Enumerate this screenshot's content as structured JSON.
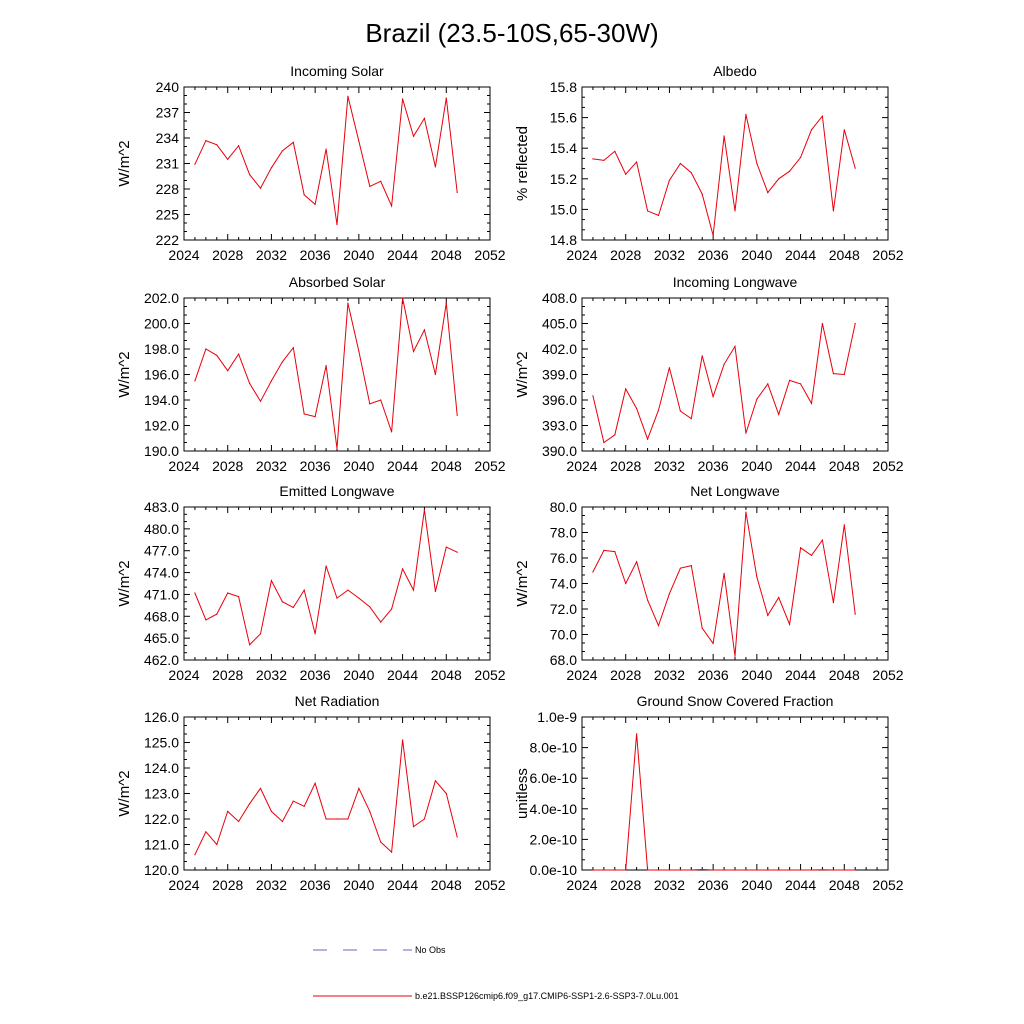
{
  "figure": {
    "title": "Brazil (23.5-10S,65-30W)"
  },
  "legend": {
    "entries": [
      {
        "label": "No Obs",
        "color": "#6666cc",
        "style": "dashed"
      },
      {
        "label": "b.e21.BSSP126cmip6.f09_g17.CMIP6-SSP1-2.6-SSP3-7.0Lu.001",
        "color": "#e8000b",
        "style": "solid"
      }
    ]
  },
  "chart_data": [
    {
      "type": "line",
      "title": "Incoming Solar",
      "ylabel": "W/m^2",
      "xlim": [
        2024,
        2052
      ],
      "xticks": [
        2024,
        2028,
        2032,
        2036,
        2040,
        2044,
        2048,
        2052
      ],
      "ylim": [
        222,
        240
      ],
      "yticks": [
        222,
        225,
        228,
        231,
        234,
        237,
        240
      ],
      "ytick_labels": [
        "222",
        "225",
        "228",
        "231",
        "234",
        "237",
        "240"
      ],
      "series": [
        {
          "color": "#e8000b",
          "x": [
            2025,
            2026,
            2027,
            2028,
            2029,
            2030,
            2031,
            2032,
            2033,
            2034,
            2035,
            2036,
            2037,
            2038,
            2039,
            2040,
            2041,
            2042,
            2043,
            2044,
            2045,
            2046,
            2047,
            2048,
            2049
          ],
          "values": [
            230.9,
            233.7,
            233.2,
            231.5,
            233.1,
            229.7,
            228.1,
            230.5,
            232.5,
            233.5,
            227.3,
            226.2,
            232.7,
            223.8,
            238.9,
            233.6,
            228.3,
            228.9,
            226.0,
            238.6,
            234.2,
            236.3,
            230.6,
            238.7,
            227.6
          ]
        }
      ]
    },
    {
      "type": "line",
      "title": "Albedo",
      "ylabel": "% reflected",
      "xlim": [
        2024,
        2052
      ],
      "xticks": [
        2024,
        2028,
        2032,
        2036,
        2040,
        2044,
        2048,
        2052
      ],
      "ylim": [
        14.8,
        15.8
      ],
      "yticks": [
        14.8,
        15.0,
        15.2,
        15.4,
        15.6,
        15.8
      ],
      "ytick_labels": [
        "14.8",
        "15.0",
        "15.2",
        "15.4",
        "15.6",
        "15.8"
      ],
      "series": [
        {
          "color": "#e8000b",
          "x": [
            2025,
            2026,
            2027,
            2028,
            2029,
            2030,
            2031,
            2032,
            2033,
            2034,
            2035,
            2036,
            2037,
            2038,
            2039,
            2040,
            2041,
            2042,
            2043,
            2044,
            2045,
            2046,
            2047,
            2048,
            2049
          ],
          "values": [
            15.33,
            15.32,
            15.38,
            15.23,
            15.31,
            14.99,
            14.96,
            15.19,
            15.3,
            15.24,
            15.1,
            14.83,
            15.48,
            14.99,
            15.62,
            15.3,
            15.11,
            15.2,
            15.25,
            15.34,
            15.52,
            15.61,
            14.99,
            15.52,
            15.27
          ]
        }
      ]
    },
    {
      "type": "line",
      "title": "Absorbed Solar",
      "ylabel": "W/m^2",
      "xlim": [
        2024,
        2052
      ],
      "xticks": [
        2024,
        2028,
        2032,
        2036,
        2040,
        2044,
        2048,
        2052
      ],
      "ylim": [
        190,
        202
      ],
      "yticks": [
        190,
        192,
        194,
        196,
        198,
        200,
        202
      ],
      "ytick_labels": [
        "190.0",
        "192.0",
        "194.0",
        "196.0",
        "198.0",
        "200.0",
        "202.0"
      ],
      "series": [
        {
          "color": "#e8000b",
          "x": [
            2025,
            2026,
            2027,
            2028,
            2029,
            2030,
            2031,
            2032,
            2033,
            2034,
            2035,
            2036,
            2037,
            2038,
            2039,
            2040,
            2041,
            2042,
            2043,
            2044,
            2045,
            2046,
            2047,
            2048,
            2049
          ],
          "values": [
            195.5,
            198.0,
            197.5,
            196.3,
            197.6,
            195.3,
            193.9,
            195.5,
            197.0,
            198.1,
            192.9,
            192.7,
            196.7,
            190.2,
            201.6,
            197.8,
            193.7,
            194.0,
            191.5,
            202.0,
            197.8,
            199.5,
            196.0,
            201.6,
            192.8
          ]
        }
      ]
    },
    {
      "type": "line",
      "title": "Incoming Longwave",
      "ylabel": "W/m^2",
      "xlim": [
        2024,
        2052
      ],
      "xticks": [
        2024,
        2028,
        2032,
        2036,
        2040,
        2044,
        2048,
        2052
      ],
      "ylim": [
        390,
        408
      ],
      "yticks": [
        390,
        393,
        396,
        399,
        402,
        405,
        408
      ],
      "ytick_labels": [
        "390.0",
        "393.0",
        "396.0",
        "399.0",
        "402.0",
        "405.0",
        "408.0"
      ],
      "series": [
        {
          "color": "#e8000b",
          "x": [
            2025,
            2026,
            2027,
            2028,
            2029,
            2030,
            2031,
            2032,
            2033,
            2034,
            2035,
            2036,
            2037,
            2038,
            2039,
            2040,
            2041,
            2042,
            2043,
            2044,
            2045,
            2046,
            2047,
            2048,
            2049
          ],
          "values": [
            396.5,
            391.0,
            391.9,
            397.3,
            395.0,
            391.4,
            394.8,
            399.8,
            394.7,
            393.8,
            401.2,
            396.4,
            400.2,
            402.3,
            392.1,
            396.1,
            397.9,
            394.3,
            398.3,
            397.9,
            395.6,
            405.0,
            399.1,
            399.0,
            405.0
          ]
        }
      ]
    },
    {
      "type": "line",
      "title": "Emitted Longwave",
      "ylabel": "W/m^2",
      "xlim": [
        2024,
        2052
      ],
      "xticks": [
        2024,
        2028,
        2032,
        2036,
        2040,
        2044,
        2048,
        2052
      ],
      "ylim": [
        462,
        483
      ],
      "yticks": [
        462,
        465,
        468,
        471,
        474,
        477,
        480,
        483
      ],
      "ytick_labels": [
        "462.0",
        "465.0",
        "468.0",
        "471.0",
        "474.0",
        "477.0",
        "480.0",
        "483.0"
      ],
      "series": [
        {
          "color": "#e8000b",
          "x": [
            2025,
            2026,
            2027,
            2028,
            2029,
            2030,
            2031,
            2032,
            2033,
            2034,
            2035,
            2036,
            2037,
            2038,
            2039,
            2040,
            2041,
            2042,
            2043,
            2044,
            2045,
            2046,
            2047,
            2048,
            2049
          ],
          "values": [
            471.2,
            467.5,
            468.3,
            471.2,
            470.7,
            464.1,
            465.6,
            472.9,
            470.0,
            469.2,
            471.6,
            465.6,
            474.9,
            470.5,
            471.6,
            470.5,
            469.3,
            467.2,
            469.0,
            474.5,
            471.6,
            482.6,
            471.4,
            477.5,
            476.8
          ]
        }
      ]
    },
    {
      "type": "line",
      "title": "Net Longwave",
      "ylabel": "W/m^2",
      "xlim": [
        2024,
        2052
      ],
      "xticks": [
        2024,
        2028,
        2032,
        2036,
        2040,
        2044,
        2048,
        2052
      ],
      "ylim": [
        68,
        80
      ],
      "yticks": [
        68,
        70,
        72,
        74,
        76,
        78,
        80
      ],
      "ytick_labels": [
        "68.0",
        "70.0",
        "72.0",
        "74.0",
        "76.0",
        "78.0",
        "80.0"
      ],
      "series": [
        {
          "color": "#e8000b",
          "x": [
            2025,
            2026,
            2027,
            2028,
            2029,
            2030,
            2031,
            2032,
            2033,
            2034,
            2035,
            2036,
            2037,
            2038,
            2039,
            2040,
            2041,
            2042,
            2043,
            2044,
            2045,
            2046,
            2047,
            2048,
            2049
          ],
          "values": [
            74.9,
            76.6,
            76.5,
            74.0,
            75.7,
            72.7,
            70.7,
            73.2,
            75.2,
            75.4,
            70.5,
            69.3,
            74.8,
            68.3,
            79.6,
            74.5,
            71.5,
            72.9,
            70.8,
            76.8,
            76.2,
            77.4,
            72.5,
            78.6,
            71.6
          ]
        }
      ]
    },
    {
      "type": "line",
      "title": "Net Radiation",
      "ylabel": "W/m^2",
      "xlim": [
        2024,
        2052
      ],
      "xticks": [
        2024,
        2028,
        2032,
        2036,
        2040,
        2044,
        2048,
        2052
      ],
      "ylim": [
        120,
        126
      ],
      "yticks": [
        120,
        121,
        122,
        123,
        124,
        125,
        126
      ],
      "ytick_labels": [
        "120.0",
        "121.0",
        "122.0",
        "123.0",
        "124.0",
        "125.0",
        "126.0"
      ],
      "series": [
        {
          "color": "#e8000b",
          "x": [
            2025,
            2026,
            2027,
            2028,
            2029,
            2030,
            2031,
            2032,
            2033,
            2034,
            2035,
            2036,
            2037,
            2038,
            2039,
            2040,
            2041,
            2042,
            2043,
            2044,
            2045,
            2046,
            2047,
            2048,
            2049
          ],
          "values": [
            120.6,
            121.5,
            121.0,
            122.3,
            121.9,
            122.6,
            123.2,
            122.3,
            121.9,
            122.7,
            122.5,
            123.4,
            122.0,
            122.0,
            122.0,
            123.2,
            122.3,
            121.1,
            120.7,
            125.1,
            121.7,
            122.0,
            123.5,
            123.0,
            121.3
          ]
        }
      ]
    },
    {
      "type": "line",
      "title": "Ground Snow Covered Fraction",
      "ylabel": "unitless",
      "xlim": [
        2024,
        2052
      ],
      "xticks": [
        2024,
        2028,
        2032,
        2036,
        2040,
        2044,
        2048,
        2052
      ],
      "ylim": [
        0,
        1e-09
      ],
      "yticks": [
        0,
        2e-10,
        4e-10,
        6e-10,
        8e-10,
        1e-09
      ],
      "ytick_labels": [
        "0.0e-10",
        "2.0e-10",
        "4.0e-10",
        "6.0e-10",
        "8.0e-10",
        "1.0e-9"
      ],
      "series": [
        {
          "color": "#e8000b",
          "x": [
            2025,
            2026,
            2027,
            2028,
            2029,
            2030,
            2031,
            2032,
            2033,
            2034,
            2035,
            2036,
            2037,
            2038,
            2039,
            2040,
            2041,
            2042,
            2043,
            2044,
            2045,
            2046,
            2047,
            2048,
            2049
          ],
          "values": [
            0,
            0,
            0,
            0,
            8.9e-10,
            0,
            0,
            0,
            0,
            0,
            3e-12,
            0,
            0,
            0,
            0,
            0,
            0,
            0,
            0,
            0,
            0,
            2e-12,
            0,
            0,
            0
          ]
        }
      ]
    }
  ]
}
